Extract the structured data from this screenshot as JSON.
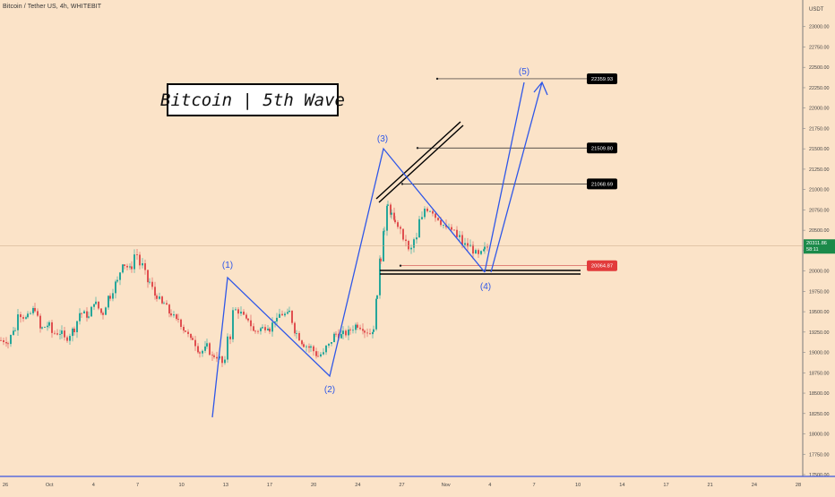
{
  "symbol": "Bitcoin / Tether US, 4h, WHITEBIT",
  "title": "Bitcoin | 5th Wave",
  "colors": {
    "background": "#fbe3c8",
    "up_candle": "#26a69a",
    "down_candle": "#e05050",
    "wave": "#2f57e8",
    "level_label_bg": "#000000",
    "current_price_bg": "#1b8a4a",
    "stop_label_bg": "#e23b3b"
  },
  "chart_data": {
    "type": "candlestick",
    "currency": "USDT",
    "y_range": [
      17500,
      23250
    ],
    "y_ticks": [
      "17500.00",
      "17750.00",
      "18000.00",
      "18250.00",
      "18500.00",
      "18750.00",
      "19000.00",
      "19250.00",
      "19500.00",
      "19750.00",
      "20000.00",
      "20250.00",
      "20500.00",
      "20750.00",
      "21000.00",
      "21250.00",
      "21500.00",
      "21750.00",
      "22000.00",
      "22250.00",
      "22500.00",
      "22750.00",
      "23000.00"
    ],
    "x_ticks": [
      "26",
      "Oct",
      "4",
      "7",
      "10",
      "13",
      "17",
      "20",
      "24",
      "27",
      "Nov",
      "4",
      "7",
      "10",
      "14",
      "17",
      "21",
      "24",
      "28"
    ],
    "price_path": [
      [
        0,
        19150
      ],
      [
        8,
        19350
      ],
      [
        16,
        19750
      ],
      [
        22,
        19400
      ],
      [
        30,
        19550
      ],
      [
        38,
        19200
      ],
      [
        46,
        19350
      ],
      [
        54,
        19150
      ],
      [
        60,
        19250
      ],
      [
        68,
        19100
      ],
      [
        74,
        19300
      ],
      [
        82,
        19550
      ],
      [
        90,
        19450
      ],
      [
        98,
        19700
      ],
      [
        106,
        19450
      ],
      [
        114,
        19750
      ],
      [
        122,
        19900
      ],
      [
        130,
        20200
      ],
      [
        138,
        20000
      ],
      [
        146,
        20350
      ],
      [
        152,
        19950
      ],
      [
        158,
        19800
      ],
      [
        166,
        19650
      ],
      [
        174,
        19550
      ],
      [
        182,
        19450
      ],
      [
        190,
        19350
      ],
      [
        198,
        19250
      ],
      [
        206,
        19100
      ],
      [
        214,
        19000
      ],
      [
        222,
        19050
      ],
      [
        230,
        18900
      ],
      [
        238,
        18950
      ],
      [
        244,
        18800
      ],
      [
        250,
        19550
      ],
      [
        256,
        19800
      ],
      [
        262,
        19500
      ],
      [
        268,
        19350
      ],
      [
        276,
        19200
      ],
      [
        284,
        19300
      ],
      [
        292,
        19350
      ],
      [
        300,
        19450
      ],
      [
        308,
        19550
      ],
      [
        314,
        19450
      ],
      [
        322,
        19200
      ],
      [
        330,
        19100
      ],
      [
        338,
        19050
      ],
      [
        346,
        18950
      ],
      [
        354,
        19000
      ],
      [
        360,
        19150
      ],
      [
        366,
        19250
      ],
      [
        374,
        19200
      ],
      [
        382,
        19250
      ],
      [
        390,
        19350
      ],
      [
        398,
        19300
      ],
      [
        406,
        19250
      ],
      [
        412,
        19300
      ],
      [
        416,
        19850
      ],
      [
        420,
        20350
      ],
      [
        424,
        20650
      ],
      [
        428,
        20850
      ],
      [
        432,
        20700
      ],
      [
        436,
        20550
      ],
      [
        440,
        20400
      ],
      [
        446,
        20150
      ],
      [
        452,
        20100
      ],
      [
        458,
        20500
      ],
      [
        464,
        20850
      ],
      [
        470,
        20900
      ],
      [
        476,
        20750
      ],
      [
        482,
        20600
      ],
      [
        488,
        20550
      ],
      [
        494,
        20450
      ],
      [
        500,
        20400
      ],
      [
        506,
        20300
      ],
      [
        512,
        20250
      ],
      [
        518,
        20300
      ],
      [
        524,
        20200
      ],
      [
        530,
        20150
      ],
      [
        536,
        20250
      ],
      [
        540,
        20300
      ]
    ],
    "wave_labels": [
      {
        "label": "(1)",
        "price": 20000
      },
      {
        "label": "(2)",
        "price": 18700
      },
      {
        "label": "(3)",
        "price": 21550
      },
      {
        "label": "(4)",
        "price": 20000
      },
      {
        "label": "(5)",
        "price": 22359.93
      }
    ],
    "levels": [
      {
        "price": 22359.93,
        "label": "22359.93"
      },
      {
        "price": 21509.8,
        "label": "21509.80"
      },
      {
        "price": 21068.69,
        "label": "21068.69"
      },
      {
        "price": 20064.87,
        "label": "20064.87"
      }
    ],
    "current_price": {
      "price": 20311.86,
      "label": "20311.86",
      "timer": "58:11"
    }
  }
}
